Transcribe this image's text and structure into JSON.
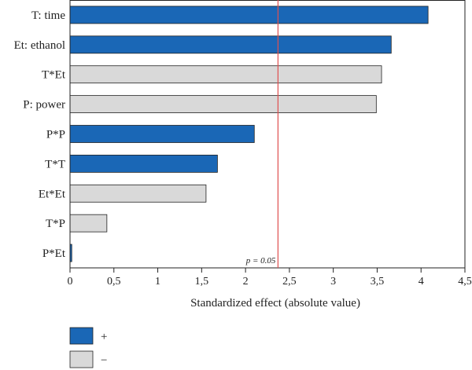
{
  "chart_data": {
    "type": "bar",
    "orientation": "horizontal",
    "categories": [
      "T: time",
      "Et: ethanol",
      "T*Et",
      "P: power",
      "P*P",
      "T*T",
      "Et*Et",
      "T*P",
      "P*Et"
    ],
    "values": [
      4.08,
      3.66,
      3.55,
      3.49,
      2.1,
      1.68,
      1.55,
      0.42,
      0.02
    ],
    "signs": [
      "+",
      "+",
      "−",
      "−",
      "+",
      "+",
      "−",
      "−",
      "+"
    ],
    "xlabel": "Standardized effect (absolute value)",
    "xlim": [
      0,
      4.5
    ],
    "xticks": [
      0,
      0.5,
      1,
      1.5,
      2,
      2.5,
      3,
      3.5,
      4,
      4.5
    ],
    "xtick_labels": [
      "0",
      "0,5",
      "1",
      "1,5",
      "2",
      "2,5",
      "3",
      "3,5",
      "4",
      "4,5"
    ],
    "reference_line": {
      "value": 2.37,
      "label": "p = 0.05",
      "color": "#e05050"
    },
    "grid": false,
    "legend": {
      "placement": "bottom-left",
      "items": [
        {
          "label": "+",
          "color": "#1a67b6"
        },
        {
          "label": "−",
          "color": "#d9d9d9"
        }
      ]
    },
    "colors": {
      "positive": "#1a67b6",
      "negative": "#d9d9d9",
      "border": "#222222"
    }
  }
}
